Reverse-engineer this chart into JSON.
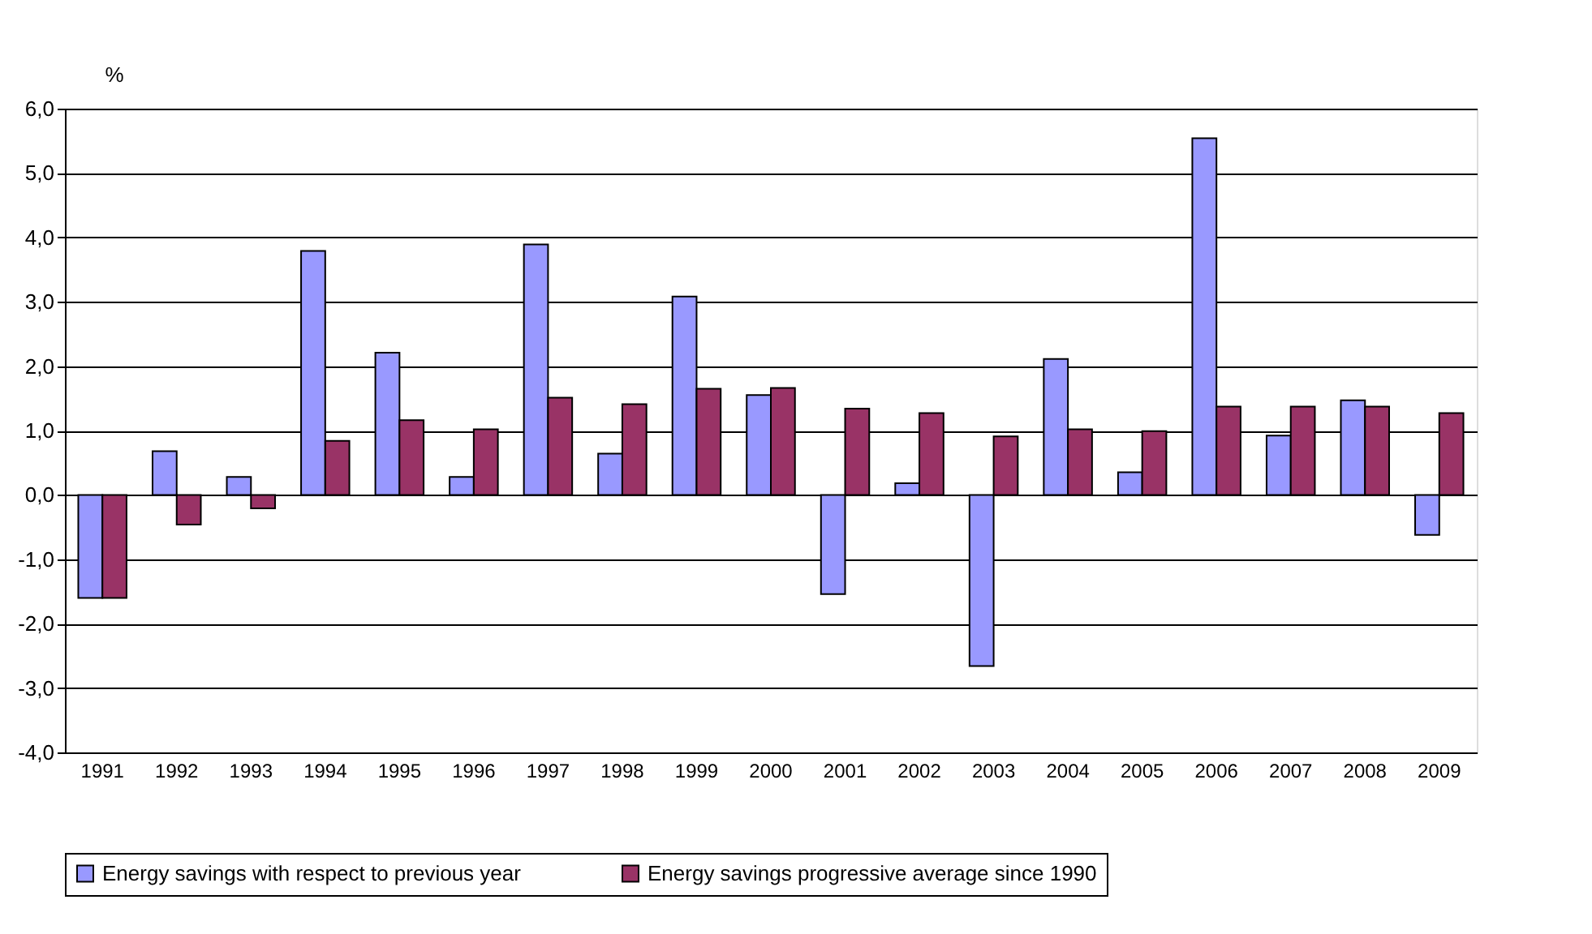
{
  "chart_data": {
    "type": "bar",
    "ylabel": "%",
    "categories": [
      "1991",
      "1992",
      "1993",
      "1994",
      "1995",
      "1996",
      "1997",
      "1998",
      "1999",
      "2000",
      "2001",
      "2002",
      "2003",
      "2004",
      "2005",
      "2006",
      "2007",
      "2008",
      "2009"
    ],
    "series": [
      {
        "name": "Energy savings with respect to previous year",
        "color": "#9999ff",
        "values": [
          -1.6,
          0.68,
          0.28,
          3.79,
          2.21,
          0.28,
          3.89,
          0.64,
          3.08,
          1.55,
          -1.54,
          0.18,
          -2.66,
          2.11,
          0.35,
          5.54,
          0.92,
          1.47,
          -0.62
        ]
      },
      {
        "name": "Energy savings progressive average since 1990",
        "color": "#993366",
        "values": [
          -1.6,
          -0.46,
          -0.21,
          0.84,
          1.16,
          1.02,
          1.51,
          1.41,
          1.65,
          1.66,
          1.34,
          1.27,
          0.91,
          1.02,
          0.99,
          1.37,
          1.37,
          1.37,
          1.27
        ]
      }
    ],
    "ylim": [
      -4,
      6
    ],
    "yticks": [
      {
        "value": -4,
        "label": "-4,0"
      },
      {
        "value": -3,
        "label": "-3,0"
      },
      {
        "value": -2,
        "label": "-2,0"
      },
      {
        "value": -1,
        "label": "-1,0"
      },
      {
        "value": 0,
        "label": "0,0"
      },
      {
        "value": 1,
        "label": "1,0"
      },
      {
        "value": 2,
        "label": "2,0"
      },
      {
        "value": 3,
        "label": "3,0"
      },
      {
        "value": 4,
        "label": "4,0"
      },
      {
        "value": 5,
        "label": "5,0"
      },
      {
        "value": 6,
        "label": "6,0"
      }
    ],
    "grid": "y",
    "legend": "bottom"
  }
}
